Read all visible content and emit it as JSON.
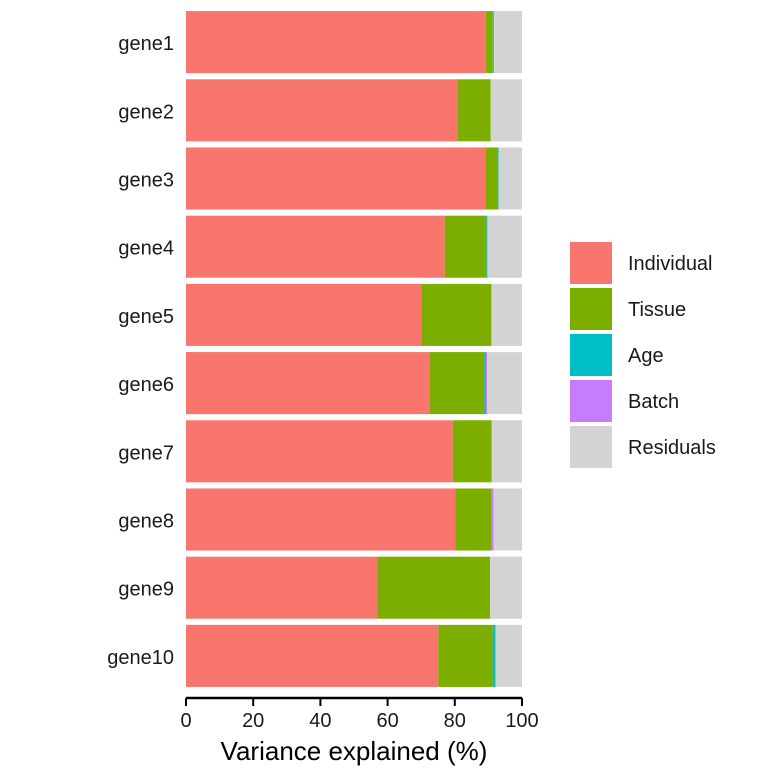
{
  "chart_data": {
    "type": "bar",
    "orientation": "horizontal",
    "stacked": true,
    "title": "",
    "xlabel": "Variance explained (%)",
    "ylabel": "",
    "xlim": [
      0,
      100
    ],
    "xticks": [
      0,
      20,
      40,
      60,
      80,
      100
    ],
    "categories": [
      "gene1",
      "gene2",
      "gene3",
      "gene4",
      "gene5",
      "gene6",
      "gene7",
      "gene8",
      "gene9",
      "gene10"
    ],
    "series": [
      {
        "name": "Individual",
        "color": "#F8766D",
        "values": [
          89.2,
          80.7,
          89.1,
          77.0,
          70.0,
          72.5,
          79.4,
          80.2,
          57.0,
          75.1
        ]
      },
      {
        "name": "Tissue",
        "color": "#7CAE00",
        "values": [
          2.1,
          10.0,
          3.6,
          12.4,
          20.9,
          16.3,
          11.6,
          10.8,
          33.5,
          16.2
        ]
      },
      {
        "name": "Age",
        "color": "#00BFC4",
        "values": [
          0.2,
          0.0,
          0.3,
          0.3,
          0.0,
          0.5,
          0.0,
          0.0,
          0.0,
          0.8
        ]
      },
      {
        "name": "Batch",
        "color": "#C77CFF",
        "values": [
          0.2,
          0.0,
          0.0,
          0.0,
          0.0,
          0.3,
          0.0,
          0.5,
          0.0,
          0.0
        ]
      },
      {
        "name": "Residuals",
        "color": "#D3D3D3",
        "values": [
          8.3,
          9.3,
          7.0,
          10.3,
          9.1,
          10.4,
          9.0,
          8.5,
          9.5,
          7.9
        ]
      }
    ],
    "legend": {
      "position": "right",
      "items": [
        "Individual",
        "Tissue",
        "Age",
        "Batch",
        "Residuals"
      ]
    },
    "grid": false,
    "axis_color": "#000000",
    "background": "#ffffff"
  }
}
